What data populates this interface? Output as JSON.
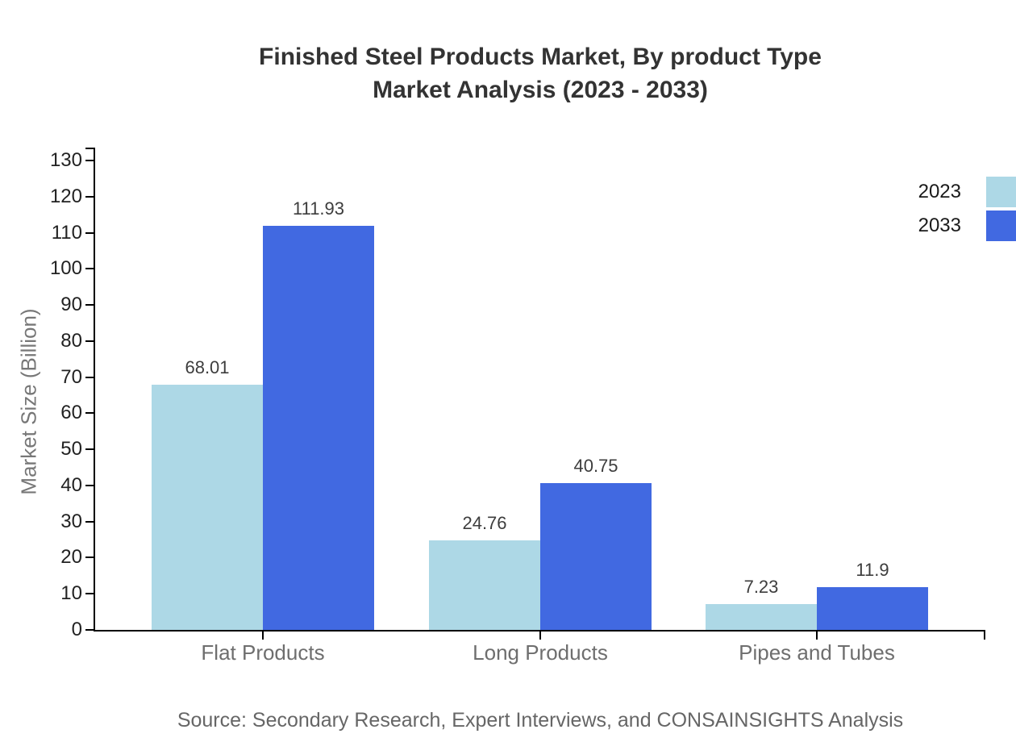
{
  "title": {
    "line1": "Finished Steel Products Market, By product Type",
    "line2": "Market Analysis (2023 - 2033)"
  },
  "source": "Source: Secondary Research, Expert Interviews, and CONSAINSIGHTS Analysis",
  "palette": {
    "series_2023": "#ADD8E6",
    "series_2033": "#4169E1",
    "axis": "#000000",
    "title_text": "#333333",
    "tick_label_text": "#222222",
    "value_label_text": "#3d3d3d",
    "category_label_text": "#6e6e6e",
    "axis_title_text": "#777777",
    "source_text": "#666666",
    "legend_text": "#1a1a1a"
  },
  "chart_data": {
    "type": "bar",
    "title": "Finished Steel Products Market, By product Type Market Analysis (2023 - 2033)",
    "categories": [
      "Flat Products",
      "Long Products",
      "Pipes and Tubes"
    ],
    "series": [
      {
        "name": "2023",
        "color": "#ADD8E6",
        "values": [
          68.01,
          24.76,
          7.23
        ]
      },
      {
        "name": "2033",
        "color": "#4169E1",
        "values": [
          111.93,
          40.75,
          11.9
        ]
      }
    ],
    "xlabel": "",
    "ylabel": "Market Size (Billion)",
    "ylim": [
      0,
      130
    ],
    "ytick_step": 10,
    "yticks": [
      0,
      10,
      20,
      30,
      40,
      50,
      60,
      70,
      80,
      90,
      100,
      110,
      120,
      130
    ],
    "grid": false,
    "legend_position": "top-right",
    "value_labels_shown": true
  }
}
